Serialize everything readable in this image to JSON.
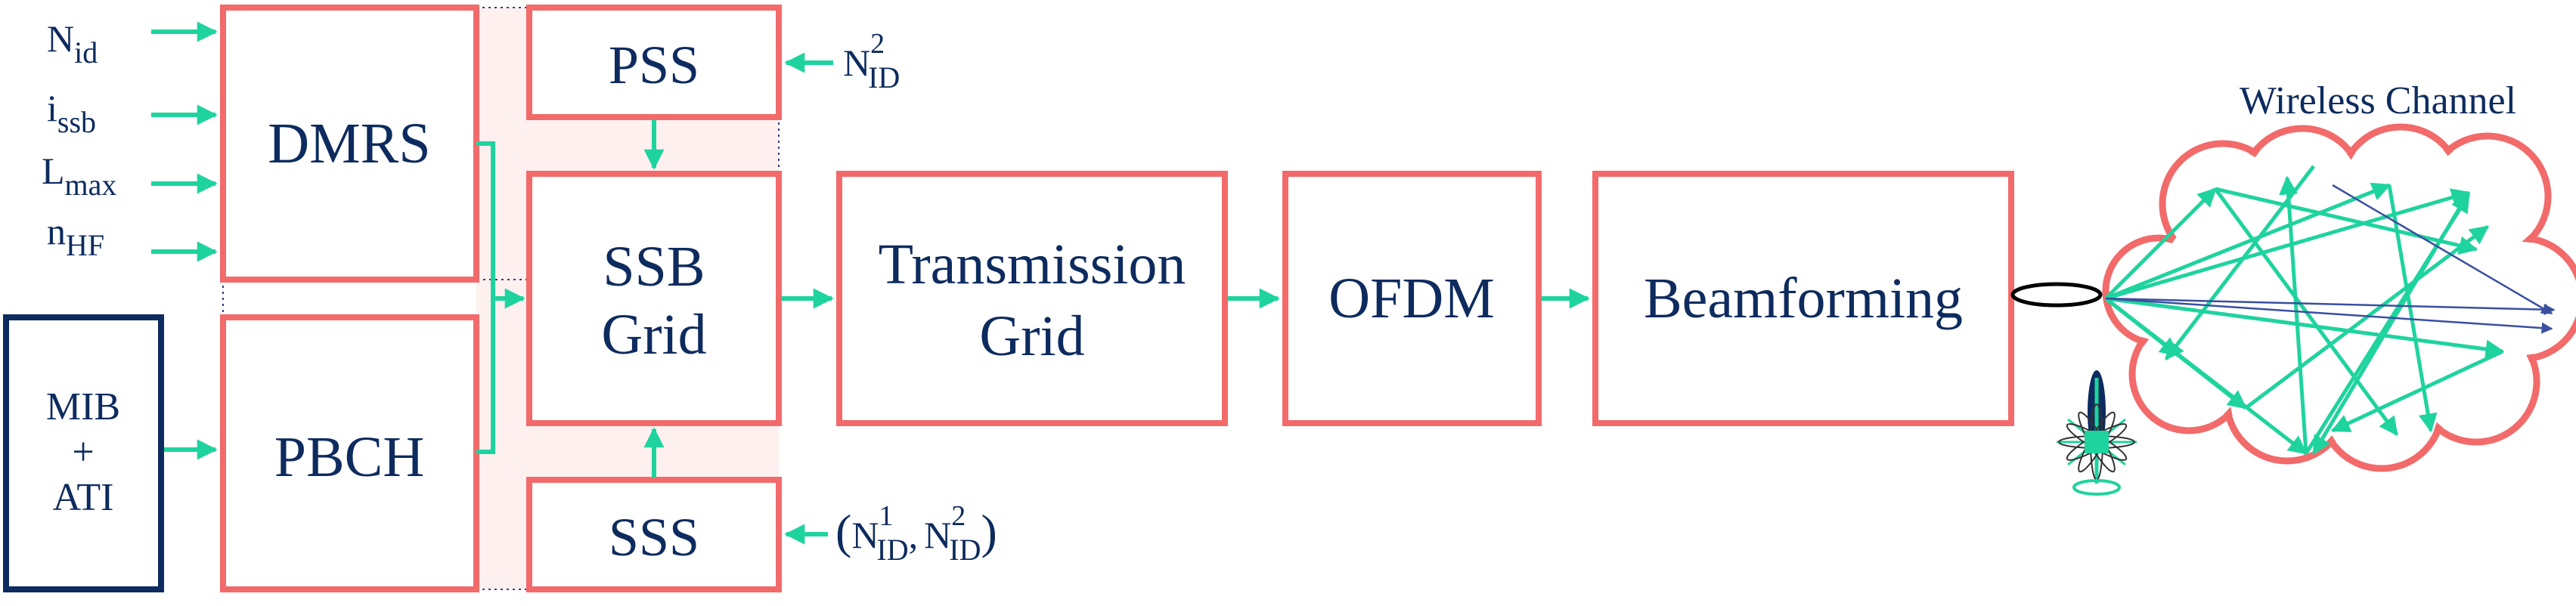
{
  "blocks": {
    "dmrs": "DMRS",
    "pbch": "PBCH",
    "mib_line1": "MIB",
    "mib_line2": "+",
    "mib_line3": "ATI",
    "pss": "PSS",
    "sss": "SSS",
    "ssb_line1": "SSB",
    "ssb_line2": "Grid",
    "tx_line1": "Transmission",
    "tx_line2": "Grid",
    "ofdm": "OFDM",
    "beamforming": "Beamforming"
  },
  "inputs": {
    "nid": {
      "base": "N",
      "sub": "id"
    },
    "issb": {
      "base": "i",
      "sub": "ssb"
    },
    "lmax": {
      "base": "L",
      "sub": "max"
    },
    "nhf": {
      "base": "n",
      "sub": "HF"
    },
    "pss_input": {
      "base": "N",
      "sub": "ID",
      "sup": "2"
    },
    "sss_input": {
      "open": "(",
      "a_base": "N",
      "a_sub": "ID",
      "a_sup": "1",
      "sep": ",",
      "b_base": "N",
      "b_sub": "ID",
      "b_sup": "2",
      "close": ")"
    }
  },
  "channel": {
    "title": "Wireless Channel"
  },
  "colors": {
    "box_stroke": "#f26a6a",
    "arrow": "#1fd39e",
    "text": "#0d2b5e",
    "mib_box_stroke": "#0d2b5e"
  }
}
